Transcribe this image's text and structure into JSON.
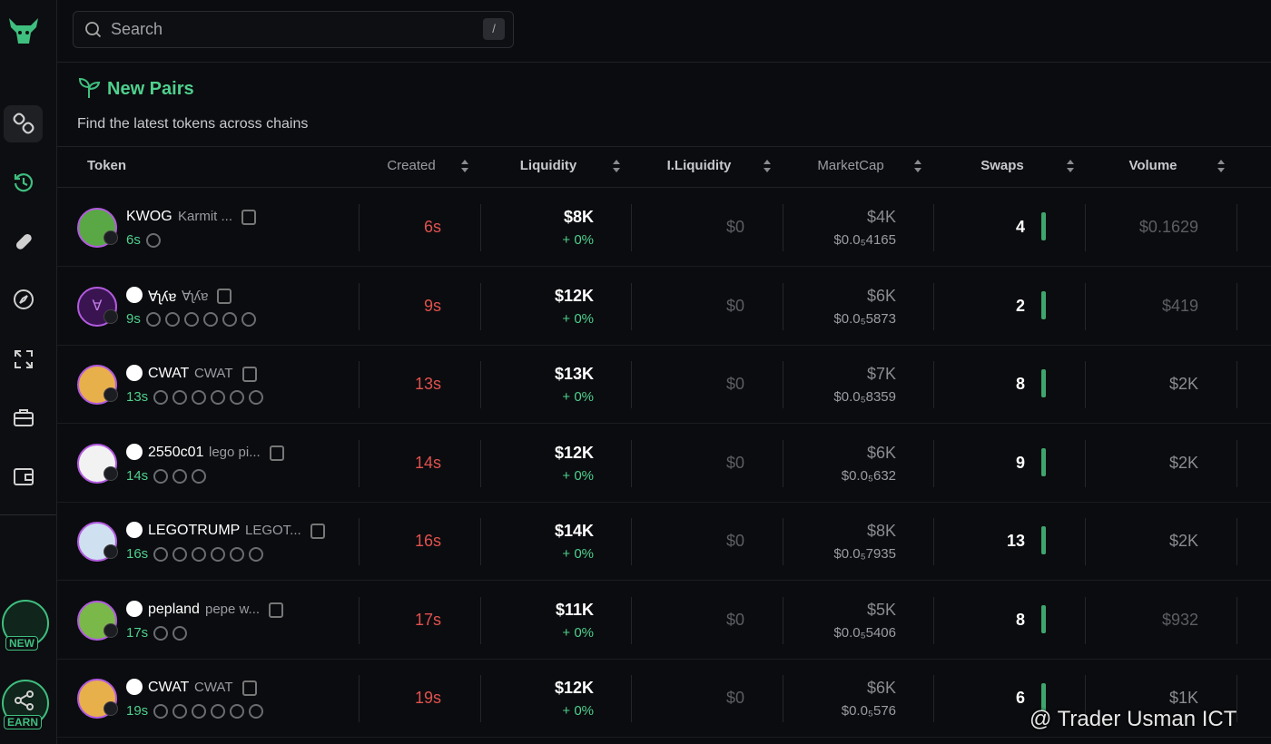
{
  "search": {
    "placeholder": "Search",
    "shortcut": "/"
  },
  "header": {
    "title": "New Pairs",
    "subtitle": "Find the latest tokens across chains"
  },
  "table": {
    "columns": [
      "Token",
      "Created",
      "Liquidity",
      "I.Liquidity",
      "MarketCap",
      "Swaps",
      "Volume"
    ],
    "rows": [
      {
        "symbol": "KWOG",
        "name": "Karmit ...",
        "age": "6s",
        "created": "6s",
        "liquidity": "$8K",
        "liquidity_change": "+ 0%",
        "i_liquidity": "$0",
        "market_cap": "$4K",
        "price": "$0.0₅4165",
        "swaps": "4",
        "volume": "$0.1629"
      },
      {
        "symbol": "∀ʅʎɐ",
        "name": "∀ʅʎɐ",
        "avatar_letter": "∀",
        "age": "9s",
        "created": "9s",
        "liquidity": "$12K",
        "liquidity_change": "+ 0%",
        "i_liquidity": "$0",
        "market_cap": "$6K",
        "price": "$0.0₅5873",
        "swaps": "2",
        "volume": "$419"
      },
      {
        "symbol": "CWAT",
        "name": "CWAT",
        "age": "13s",
        "created": "13s",
        "liquidity": "$13K",
        "liquidity_change": "+ 0%",
        "i_liquidity": "$0",
        "market_cap": "$7K",
        "price": "$0.0₅8359",
        "swaps": "8",
        "volume": "$2K"
      },
      {
        "symbol": "2550c01",
        "name": "lego pi...",
        "age": "14s",
        "created": "14s",
        "liquidity": "$12K",
        "liquidity_change": "+ 0%",
        "i_liquidity": "$0",
        "market_cap": "$6K",
        "price": "$0.0₅632",
        "swaps": "9",
        "volume": "$2K"
      },
      {
        "symbol": "LEGOTRUMP",
        "name": "LEGOT...",
        "age": "16s",
        "created": "16s",
        "liquidity": "$14K",
        "liquidity_change": "+ 0%",
        "i_liquidity": "$0",
        "market_cap": "$8K",
        "price": "$0.0₅7935",
        "swaps": "13",
        "volume": "$2K"
      },
      {
        "symbol": "pepland",
        "name": "pepe w...",
        "age": "17s",
        "created": "17s",
        "liquidity": "$11K",
        "liquidity_change": "+ 0%",
        "i_liquidity": "$0",
        "market_cap": "$5K",
        "price": "$0.0₅5406",
        "swaps": "8",
        "volume": "$932"
      },
      {
        "symbol": "CWAT",
        "name": "CWAT",
        "age": "19s",
        "created": "19s",
        "liquidity": "$12K",
        "liquidity_change": "+ 0%",
        "i_liquidity": "$0",
        "market_cap": "$6K",
        "price": "$0.0₅576",
        "swaps": "6",
        "volume": "$1K"
      }
    ]
  },
  "sidebar": {
    "badges": [
      "NEW",
      "EARN"
    ]
  },
  "watermark": "@ Trader Usman ICT"
}
